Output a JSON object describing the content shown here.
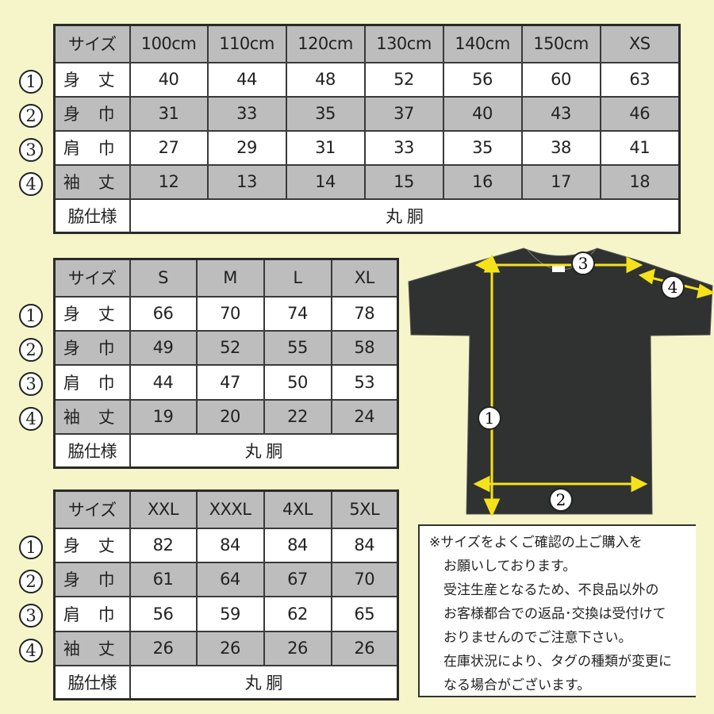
{
  "row_markers": [
    "1",
    "2",
    "3",
    "4"
  ],
  "tables": [
    {
      "header": [
        "サイズ",
        "100cm",
        "110cm",
        "120cm",
        "130cm",
        "140cm",
        "150cm",
        "XS"
      ],
      "rows": [
        [
          "身 丈",
          "40",
          "44",
          "48",
          "52",
          "56",
          "60",
          "63"
        ],
        [
          "身 巾",
          "31",
          "33",
          "35",
          "37",
          "40",
          "43",
          "46"
        ],
        [
          "肩 巾",
          "27",
          "29",
          "31",
          "33",
          "35",
          "38",
          "41"
        ],
        [
          "袖 丈",
          "12",
          "13",
          "14",
          "15",
          "16",
          "17",
          "18"
        ]
      ],
      "side_label": "脇仕様",
      "side_value": "丸 胴"
    },
    {
      "header": [
        "サイズ",
        "S",
        "M",
        "L",
        "XL"
      ],
      "rows": [
        [
          "身 丈",
          "66",
          "70",
          "74",
          "78"
        ],
        [
          "身 巾",
          "49",
          "52",
          "55",
          "58"
        ],
        [
          "肩 巾",
          "44",
          "47",
          "50",
          "53"
        ],
        [
          "袖 丈",
          "19",
          "20",
          "22",
          "24"
        ]
      ],
      "side_label": "脇仕様",
      "side_value": "丸 胴"
    },
    {
      "header": [
        "サイズ",
        "XXL",
        "XXXL",
        "4XL",
        "5XL"
      ],
      "rows": [
        [
          "身 丈",
          "82",
          "84",
          "84",
          "84"
        ],
        [
          "身 巾",
          "61",
          "64",
          "67",
          "70"
        ],
        [
          "肩 巾",
          "56",
          "59",
          "62",
          "65"
        ],
        [
          "袖 丈",
          "26",
          "26",
          "26",
          "26"
        ]
      ],
      "side_label": "脇仕様",
      "side_value": "丸 胴"
    }
  ],
  "diagram": {
    "labels": [
      "1",
      "2",
      "3",
      "4"
    ],
    "shirt_color": "#2f3230",
    "arrow_color": "#f5e21a"
  },
  "note": [
    "※サイズをよくご確認の上ご購入を",
    "お願いしております。",
    "受注生産となるため、不良品以外の",
    "お客様都合での返品･交換は受付けて",
    "おりませんのでご注意下さい。",
    "在庫状況により、タグの種類が変更に",
    "なる場合がございます。"
  ]
}
